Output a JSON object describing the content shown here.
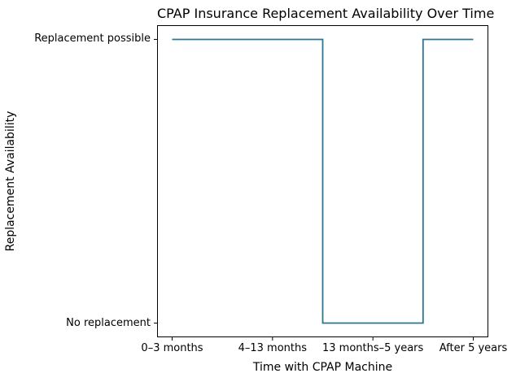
{
  "chart_data": {
    "type": "line",
    "step_style": "mid",
    "title": "CPAP Insurance Replacement Availability Over Time",
    "xlabel": "Time with CPAP Machine",
    "ylabel": "Replacement Availability",
    "categories": [
      "0–3 months",
      "4–13 months",
      "13 months–5 years",
      "After 5 years"
    ],
    "values": [
      1,
      1,
      0,
      1
    ],
    "y_ticks": [
      {
        "value": 1,
        "label": "Replacement possible"
      },
      {
        "value": 0,
        "label": "No replacement"
      }
    ],
    "ylim": [
      -0.05,
      1.05
    ],
    "grid": false,
    "legend": "none",
    "line_color": "#2e7591",
    "axis_color": "#000000",
    "background_color": "#ffffff"
  }
}
